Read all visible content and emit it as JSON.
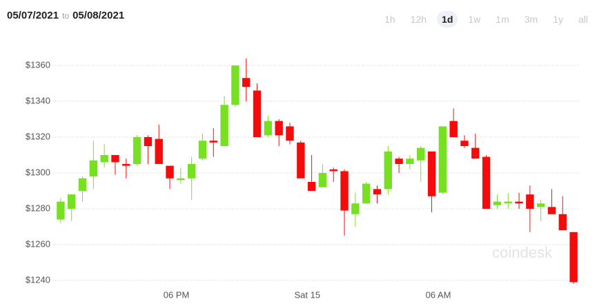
{
  "date_range": {
    "from": "05/07/2021",
    "separator": "to",
    "to": "05/08/2021"
  },
  "ranges": [
    "1h",
    "12h",
    "1d",
    "1w",
    "1m",
    "3m",
    "1y",
    "all"
  ],
  "selected_range": "1d",
  "watermark": "coindesk",
  "chart_data": {
    "type": "candlestick",
    "up_color": "#77e022",
    "down_color": "#f50b0b",
    "open": [
      1274,
      1280,
      1290,
      1298,
      1306,
      1310,
      1305,
      1305,
      1320,
      1319,
      1304,
      1296,
      1297,
      1308,
      1318,
      1315,
      1338,
      1353,
      1346,
      1321,
      1329,
      1326,
      1317,
      1295,
      1292,
      1302,
      1301,
      1277,
      1283,
      1291,
      1291,
      1308,
      1305,
      1307,
      1312,
      1289,
      1329,
      1318,
      1314,
      1309,
      1282,
      1283,
      1284,
      1288,
      1281,
      1281,
      1277,
      1267
    ],
    "high": [
      1286,
      1288,
      1298,
      1318,
      1316,
      1310,
      1308,
      1321,
      1321,
      1327,
      1304,
      1303,
      1309,
      1322,
      1325,
      1343,
      1360,
      1364,
      1350,
      1332,
      1330,
      1328,
      1318,
      1310,
      1305,
      1303,
      1302,
      1289,
      1295,
      1293,
      1315,
      1309,
      1310,
      1315,
      1312,
      1326,
      1336,
      1321,
      1322,
      1310,
      1288,
      1289,
      1289,
      1293,
      1285,
      1291,
      1287,
      1267
    ],
    "low": [
      1272,
      1273,
      1284,
      1291,
      1303,
      1299,
      1297,
      1304,
      1305,
      1305,
      1291,
      1294,
      1285,
      1307,
      1309,
      1315,
      1337,
      1340,
      1320,
      1320,
      1315,
      1316,
      1297,
      1290,
      1292,
      1295,
      1265,
      1270,
      1283,
      1283,
      1288,
      1300,
      1302,
      1295,
      1278,
      1288,
      1320,
      1314,
      1308,
      1280,
      1280,
      1280,
      1280,
      1267,
      1273,
      1277,
      1268,
      1238
    ],
    "close": [
      1284,
      1288,
      1297,
      1307,
      1310,
      1306,
      1304,
      1320,
      1315,
      1305,
      1297,
      1297,
      1305,
      1318,
      1317,
      1338,
      1360,
      1348,
      1320,
      1329,
      1321,
      1318,
      1297,
      1290,
      1300,
      1301,
      1279,
      1283,
      1294,
      1288,
      1312,
      1305,
      1308,
      1314,
      1287,
      1326,
      1320,
      1315,
      1308,
      1280,
      1284,
      1284,
      1283,
      1280,
      1283,
      1277,
      1268,
      1239
    ],
    "xlim": [
      -0.5,
      47.5
    ],
    "xticks": [
      {
        "value": 10.6,
        "label": "06 PM"
      },
      {
        "value": 22.6,
        "label": "Sat 15"
      },
      {
        "value": 34.6,
        "label": "06 AM"
      }
    ],
    "ylim": [
      1236,
      1368
    ],
    "yticks": [
      {
        "value": 1240,
        "label": "$1240"
      },
      {
        "value": 1260,
        "label": "$1260"
      },
      {
        "value": 1280,
        "label": "$1280"
      },
      {
        "value": 1300,
        "label": "$1300"
      },
      {
        "value": 1320,
        "label": "$1320"
      },
      {
        "value": 1340,
        "label": "$1340"
      },
      {
        "value": 1360,
        "label": "$1360"
      }
    ],
    "grid": true
  }
}
